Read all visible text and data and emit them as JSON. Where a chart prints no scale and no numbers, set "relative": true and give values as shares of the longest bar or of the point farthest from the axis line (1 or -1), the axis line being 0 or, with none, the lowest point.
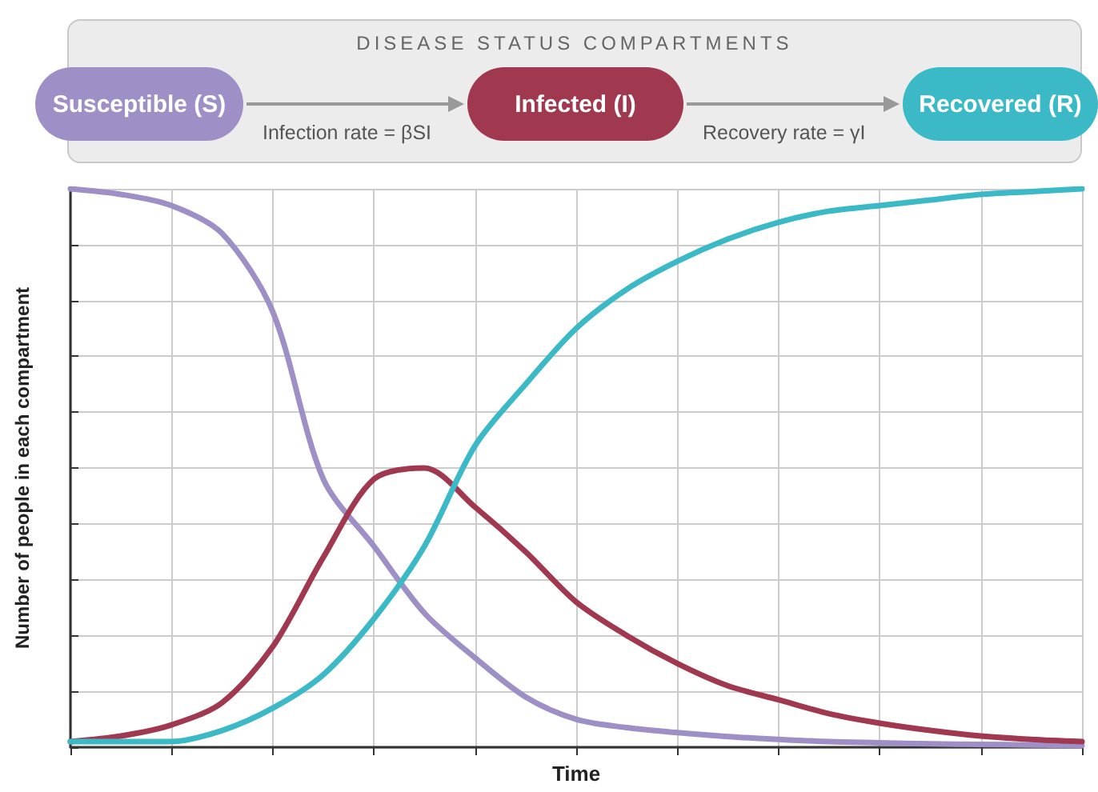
{
  "chart_data": {
    "type": "line",
    "title": "DISEASE STATUS COMPARTMENTS",
    "xlabel": "Time",
    "ylabel": "Number of people in each compartment",
    "annotations": [
      "Infection rate = βSI",
      "Recovery rate = γI"
    ],
    "relative": true,
    "grid": true,
    "legend": "top",
    "tick_labels": false,
    "marker": "none",
    "line_style": "solid",
    "categories": [
      null,
      null,
      null,
      null,
      null,
      null,
      null,
      null,
      null,
      null,
      null,
      null,
      null,
      null,
      null,
      null,
      null,
      null,
      null,
      null,
      null
    ],
    "series": [
      {
        "name": "Susceptible (S)",
        "color": "#9e8fc6",
        "values": [
          1,
          0.99,
          0.97,
          0.92,
          0.78,
          0.48,
          0.36,
          0.24,
          0.16,
          0.09,
          0.05,
          0.035,
          0.026,
          0.019,
          0.014,
          0.01,
          0.008,
          0.006,
          0.005,
          0.004,
          0.003
        ]
      },
      {
        "name": "Infected (I)",
        "color": "#a0384f",
        "values": [
          0.01,
          0.02,
          0.04,
          0.08,
          0.18,
          0.34,
          0.48,
          0.5,
          0.43,
          0.35,
          0.26,
          0.2,
          0.15,
          0.11,
          0.085,
          0.06,
          0.043,
          0.03,
          0.02,
          0.014,
          0.01
        ]
      },
      {
        "name": "Recovered (R)",
        "color": "#3bb9c6",
        "values": [
          0.01,
          0.01,
          0.01,
          0.03,
          0.07,
          0.13,
          0.23,
          0.36,
          0.54,
          0.65,
          0.75,
          0.82,
          0.87,
          0.91,
          0.94,
          0.96,
          0.97,
          0.98,
          0.99,
          0.995,
          1
        ]
      }
    ]
  }
}
